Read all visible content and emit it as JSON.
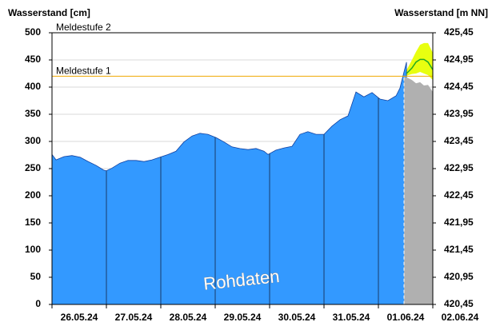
{
  "chart_data": {
    "type": "area",
    "y_axis_label": "Wasserstand [cm]",
    "y2_axis_label": "Wasserstand [m NN]",
    "xlim": [
      0,
      168
    ],
    "xticks": [
      0,
      24,
      48,
      72,
      96,
      120,
      144,
      168
    ],
    "x_labels": [
      {
        "value": 12,
        "label": "26.05.24"
      },
      {
        "value": 36,
        "label": "27.05.24"
      },
      {
        "value": 60,
        "label": "28.05.24"
      },
      {
        "value": 84,
        "label": "29.05.24"
      },
      {
        "value": 108,
        "label": "30.05.24"
      },
      {
        "value": 132,
        "label": "31.05.24"
      },
      {
        "value": 156,
        "label": "01.06.24"
      },
      {
        "value": 180,
        "label": "02.06.24"
      }
    ],
    "ylim": [
      0,
      500
    ],
    "yticks": [
      0,
      50,
      100,
      150,
      200,
      250,
      300,
      350,
      400,
      450,
      500
    ],
    "y2lim": [
      420.45,
      425.45
    ],
    "y2ticks": [
      {
        "value": 420.45,
        "label": "420,45"
      },
      {
        "value": 420.95,
        "label": "420,95"
      },
      {
        "value": 421.45,
        "label": "421,45"
      },
      {
        "value": 421.95,
        "label": "421,95"
      },
      {
        "value": 422.45,
        "label": "422,45"
      },
      {
        "value": 422.95,
        "label": "422,95"
      },
      {
        "value": 423.45,
        "label": "423,45"
      },
      {
        "value": 423.95,
        "label": "423,95"
      },
      {
        "value": 424.45,
        "label": "424,45"
      },
      {
        "value": 424.95,
        "label": "424,95"
      },
      {
        "value": 425.45,
        "label": "425,45"
      }
    ],
    "grid": true,
    "thresholds": [
      {
        "label": "Meldestufe 2",
        "value": 500,
        "color": "#f0a800"
      },
      {
        "label": "Meldestufe 1",
        "value": 420,
        "color": "#f0a800"
      }
    ],
    "forecast_start": 155.3,
    "watermark": "Rohdaten",
    "series": [
      {
        "color": "#3399ff",
        "x": [
          0,
          1.8,
          5.3,
          8.8,
          12.4,
          15.9,
          19.4,
          22.9,
          24,
          26.5,
          30,
          33.5,
          37.1,
          40.6,
          44.1,
          47.6,
          51.2,
          54.7,
          58.2,
          61.8,
          65.3,
          68.8,
          72.4,
          75.9,
          79.4,
          82.9,
          86.5,
          90,
          93.5,
          95.3,
          98.8,
          102.4,
          105.9,
          109.4,
          112.9,
          116.5,
          120,
          123.5,
          127.1,
          130.6,
          134.1,
          137.6,
          141.2,
          144.7,
          148.2,
          151.8,
          153.5,
          155.3,
          156.4
        ],
        "values": [
          276,
          266,
          272,
          274,
          271,
          263,
          256,
          247,
          246,
          251,
          260,
          265,
          265,
          263,
          266,
          271,
          276,
          282,
          299,
          310,
          315,
          313,
          307,
          299,
          290,
          287,
          285,
          287,
          282,
          276,
          284,
          288,
          291,
          313,
          318,
          313,
          313,
          328,
          340,
          347,
          391,
          382,
          390,
          378,
          375,
          384,
          398,
          428,
          446
        ]
      },
      {
        "color": "#b0b0b0",
        "x": [
          155.3,
          156.4,
          158.8,
          160.6,
          162.4,
          164.1,
          165.9,
          168
        ],
        "values": [
          418,
          418,
          413,
          407,
          409,
          403,
          404,
          391
        ]
      },
      {
        "color": "#22aa22",
        "style": "line",
        "x": [
          156.4,
          158.8,
          160.6,
          162.4,
          164.1,
          165.9,
          168
        ],
        "values": [
          425,
          435,
          446,
          451,
          451,
          446,
          432
        ]
      }
    ],
    "band": {
      "color": "#e8ff10",
      "x": [
        156.4,
        158.8,
        160.6,
        162.4,
        164.1,
        165.9,
        168
      ],
      "upper": [
        431,
        450,
        465,
        478,
        481,
        481,
        463
      ],
      "lower": [
        421,
        424,
        425,
        428,
        425,
        422,
        413
      ]
    }
  }
}
